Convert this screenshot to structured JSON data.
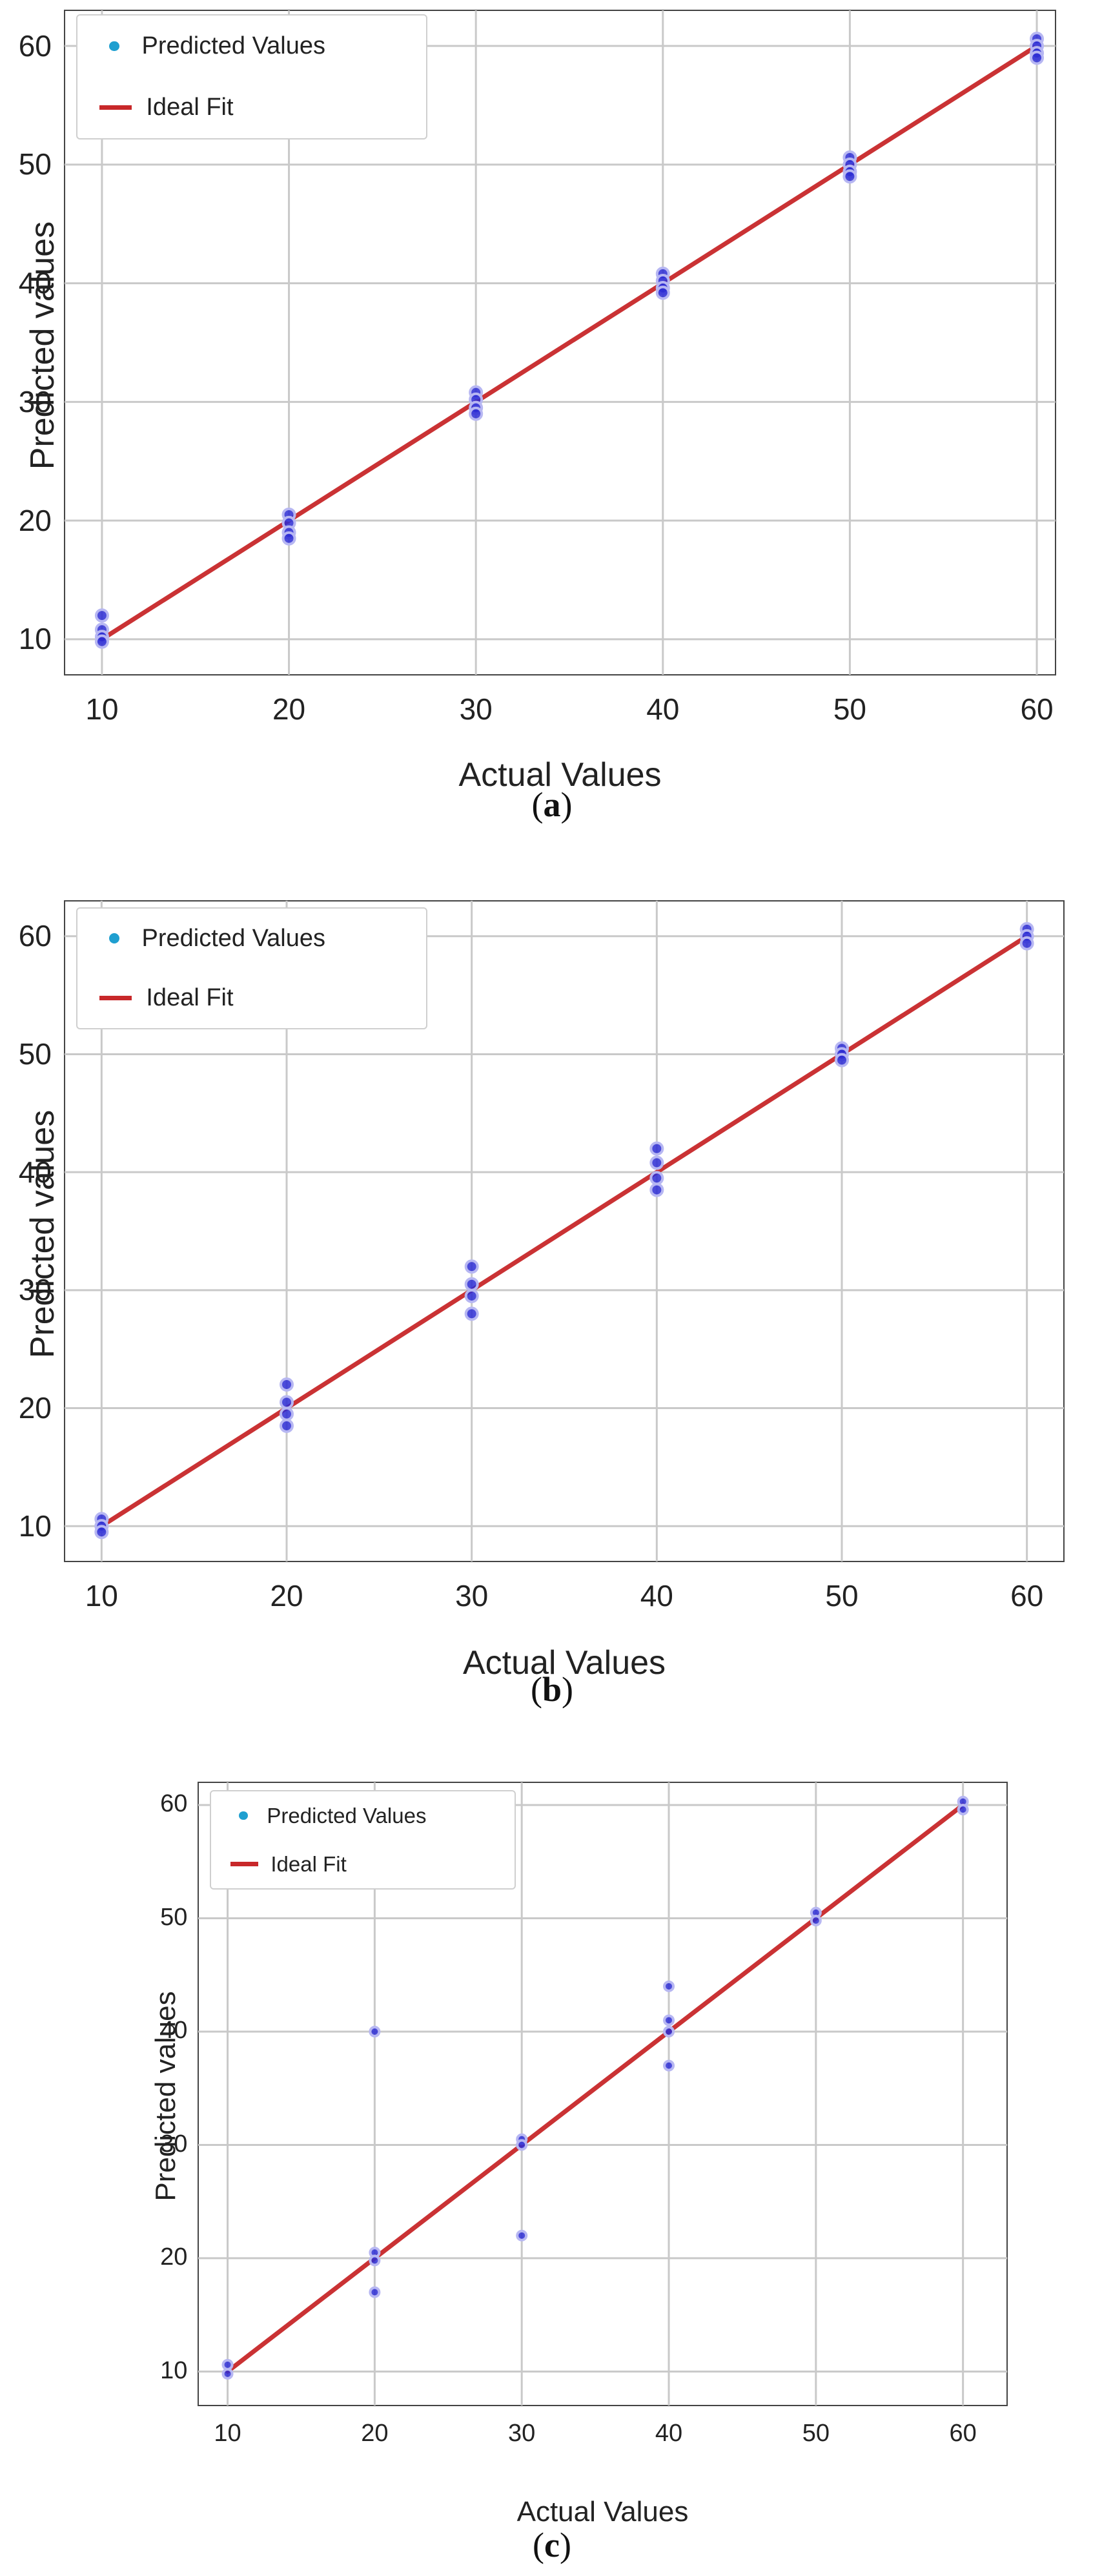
{
  "chart_data": [
    {
      "type": "scatter",
      "caption": "a",
      "xlabel": "Actual Values",
      "ylabel": "Predicted values",
      "xlim": [
        8,
        61
      ],
      "ylim": [
        7,
        63
      ],
      "xticks": [
        10,
        20,
        30,
        40,
        50,
        60
      ],
      "yticks": [
        10,
        20,
        30,
        40,
        50,
        60
      ],
      "grid": true,
      "legend_position": "top-left",
      "series": [
        {
          "name": "Predicted Values",
          "type": "scatter",
          "color": "#2b2bd4",
          "points": [
            [
              10,
              12
            ],
            [
              10,
              10.8
            ],
            [
              10,
              10.2
            ],
            [
              10,
              9.8
            ],
            [
              20,
              20.5
            ],
            [
              20,
              19.8
            ],
            [
              20,
              19
            ],
            [
              20,
              18.5
            ],
            [
              30,
              30.8
            ],
            [
              30,
              30.2
            ],
            [
              30,
              29.5
            ],
            [
              30,
              29
            ],
            [
              40,
              40.8
            ],
            [
              40,
              40.2
            ],
            [
              40,
              39.6
            ],
            [
              40,
              39.2
            ],
            [
              50,
              50.6
            ],
            [
              50,
              50
            ],
            [
              50,
              49.4
            ],
            [
              50,
              49
            ],
            [
              60,
              60.6
            ],
            [
              60,
              60
            ],
            [
              60,
              59.4
            ],
            [
              60,
              59
            ]
          ]
        },
        {
          "name": "Ideal Fit",
          "type": "line",
          "color": "#c8282a",
          "points": [
            [
              10,
              10
            ],
            [
              60,
              60
            ]
          ]
        }
      ]
    },
    {
      "type": "scatter",
      "caption": "b",
      "xlabel": "Actual Values",
      "ylabel": "Predicted values",
      "xlim": [
        8,
        62
      ],
      "ylim": [
        7,
        63
      ],
      "xticks": [
        10,
        20,
        30,
        40,
        50,
        60
      ],
      "yticks": [
        10,
        20,
        30,
        40,
        50,
        60
      ],
      "grid": true,
      "legend_position": "top-left",
      "series": [
        {
          "name": "Predicted Values",
          "type": "scatter",
          "color": "#2b2bd4",
          "points": [
            [
              10,
              10.6
            ],
            [
              10,
              10
            ],
            [
              10,
              9.5
            ],
            [
              20,
              22
            ],
            [
              20,
              20.5
            ],
            [
              20,
              19.5
            ],
            [
              20,
              18.5
            ],
            [
              30,
              32
            ],
            [
              30,
              30.5
            ],
            [
              30,
              29.5
            ],
            [
              30,
              28
            ],
            [
              40,
              42
            ],
            [
              40,
              40.8
            ],
            [
              40,
              39.5
            ],
            [
              40,
              38.5
            ],
            [
              50,
              50.5
            ],
            [
              50,
              50
            ],
            [
              50,
              49.5
            ],
            [
              60,
              60.6
            ],
            [
              60,
              60
            ],
            [
              60,
              59.4
            ]
          ]
        },
        {
          "name": "Ideal Fit",
          "type": "line",
          "color": "#c8282a",
          "points": [
            [
              10,
              10
            ],
            [
              60,
              60
            ]
          ]
        }
      ]
    },
    {
      "type": "scatter",
      "caption": "c",
      "xlabel": "Actual Values",
      "ylabel": "Predicted values",
      "xlim": [
        8,
        63
      ],
      "ylim": [
        7,
        62
      ],
      "xticks": [
        10,
        20,
        30,
        40,
        50,
        60
      ],
      "yticks": [
        10,
        20,
        30,
        40,
        50,
        60
      ],
      "grid": true,
      "legend_position": "top-left",
      "series": [
        {
          "name": "Predicted Values",
          "type": "scatter",
          "color": "#2b2bd4",
          "points": [
            [
              10,
              10.6
            ],
            [
              10,
              9.8
            ],
            [
              20,
              40
            ],
            [
              20,
              20.5
            ],
            [
              20,
              19.8
            ],
            [
              20,
              17
            ],
            [
              30,
              30.5
            ],
            [
              30,
              30
            ],
            [
              30,
              22
            ],
            [
              40,
              44
            ],
            [
              40,
              41
            ],
            [
              40,
              40
            ],
            [
              40,
              37
            ],
            [
              50,
              50.5
            ],
            [
              50,
              49.8
            ],
            [
              60,
              60.3
            ],
            [
              60,
              59.6
            ]
          ]
        },
        {
          "name": "Ideal Fit",
          "type": "line",
          "color": "#c8282a",
          "points": [
            [
              10,
              10
            ],
            [
              60,
              60
            ]
          ]
        }
      ]
    }
  ]
}
